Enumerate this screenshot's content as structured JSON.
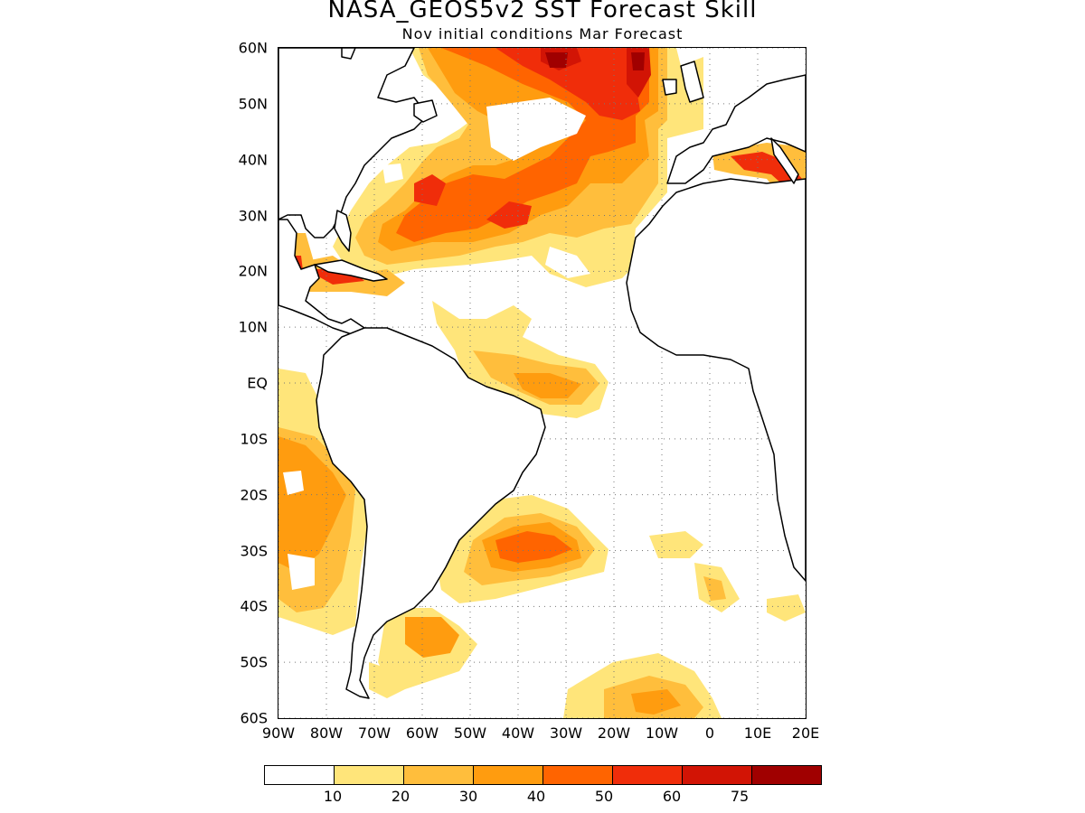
{
  "title": "NASA_GEOS5v2 SST Forecast Skill",
  "subtitle": "Nov initial conditions  Mar Forecast",
  "map": {
    "projection": "lat-lon",
    "lon_range": [
      -90,
      20
    ],
    "lat_range": [
      -60,
      60
    ],
    "grid": "dotted",
    "lat_labels": [
      "60N",
      "50N",
      "40N",
      "30N",
      "20N",
      "10N",
      "EQ",
      "10S",
      "20S",
      "30S",
      "40S",
      "50S",
      "60S"
    ],
    "lon_labels": [
      "90W",
      "80W",
      "70W",
      "60W",
      "50W",
      "40W",
      "30W",
      "20W",
      "10W",
      "0",
      "10E",
      "20E"
    ]
  },
  "colorbar": {
    "colors": [
      "#ffffff",
      "#ffe57a",
      "#ffbe3c",
      "#ff9c0f",
      "#ff6400",
      "#f02d0a",
      "#d21405",
      "#a00000"
    ],
    "labels": [
      "10",
      "20",
      "30",
      "40",
      "50",
      "60",
      "75"
    ]
  }
}
